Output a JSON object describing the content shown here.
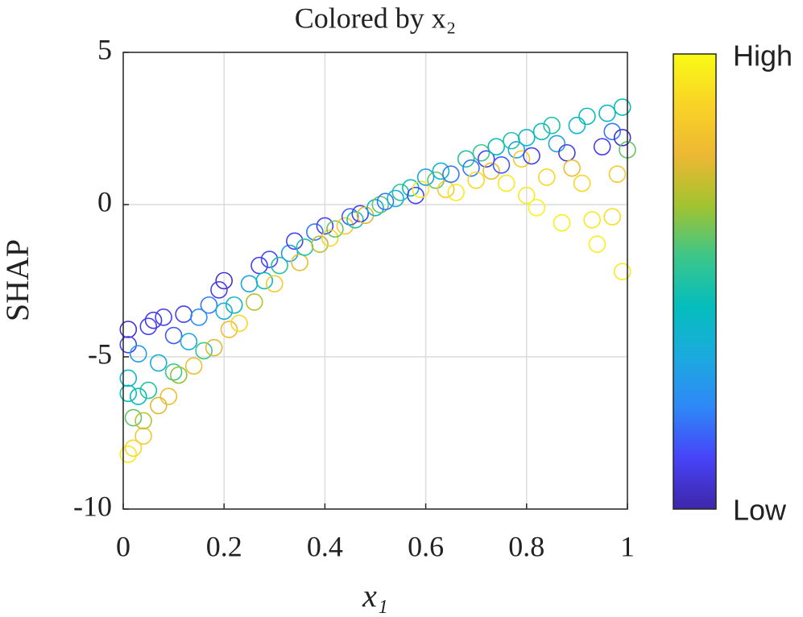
{
  "chart_data": {
    "type": "scatter",
    "title": "Colored by x₂",
    "xlabel": "x₁",
    "ylabel": "SHAP",
    "xlim": [
      0,
      1
    ],
    "xticks": [
      0,
      0.2,
      0.4,
      0.6,
      0.8,
      1
    ],
    "ylim": [
      -10,
      5
    ],
    "yticks": [
      -10,
      -5,
      0,
      5
    ],
    "grid": true,
    "colorbar": {
      "high_label": "High",
      "low_label": "Low"
    },
    "colormap": [
      "#3e26a8",
      "#4743f8",
      "#2e87f7",
      "#1caadf",
      "#04bdbd",
      "#3cc68a",
      "#a2c32f",
      "#edb833",
      "#f9d326",
      "#f9fb15"
    ],
    "x": [
      0.01,
      0.01,
      0.01,
      0.01,
      0.01,
      0.02,
      0.02,
      0.03,
      0.03,
      0.04,
      0.04,
      0.05,
      0.05,
      0.06,
      0.07,
      0.07,
      0.08,
      0.09,
      0.1,
      0.1,
      0.11,
      0.12,
      0.13,
      0.14,
      0.15,
      0.16,
      0.17,
      0.18,
      0.19,
      0.2,
      0.2,
      0.21,
      0.22,
      0.23,
      0.25,
      0.26,
      0.27,
      0.28,
      0.29,
      0.3,
      0.31,
      0.33,
      0.34,
      0.35,
      0.36,
      0.38,
      0.39,
      0.4,
      0.41,
      0.42,
      0.44,
      0.45,
      0.46,
      0.47,
      0.48,
      0.5,
      0.51,
      0.52,
      0.54,
      0.55,
      0.57,
      0.58,
      0.59,
      0.6,
      0.62,
      0.63,
      0.64,
      0.65,
      0.66,
      0.68,
      0.69,
      0.7,
      0.71,
      0.72,
      0.73,
      0.74,
      0.75,
      0.76,
      0.77,
      0.78,
      0.79,
      0.8,
      0.8,
      0.81,
      0.82,
      0.83,
      0.84,
      0.85,
      0.86,
      0.87,
      0.88,
      0.89,
      0.9,
      0.91,
      0.92,
      0.93,
      0.94,
      0.95,
      0.96,
      0.97,
      0.97,
      0.98,
      0.99,
      0.99,
      0.99,
      1.0
    ],
    "y": [
      -4.1,
      -4.6,
      -5.7,
      -6.2,
      -8.2,
      -8.0,
      -7.0,
      -6.3,
      -4.9,
      -7.6,
      -7.1,
      -6.1,
      -4.0,
      -3.8,
      -6.6,
      -5.2,
      -3.7,
      -6.3,
      -4.3,
      -5.5,
      -5.6,
      -3.6,
      -4.5,
      -5.3,
      -3.7,
      -4.8,
      -3.3,
      -4.7,
      -2.8,
      -2.5,
      -3.5,
      -4.1,
      -3.3,
      -3.9,
      -2.6,
      -3.2,
      -2.0,
      -2.5,
      -1.8,
      -2.6,
      -2.0,
      -1.6,
      -1.2,
      -1.9,
      -1.4,
      -0.9,
      -1.3,
      -0.7,
      -1.1,
      -0.8,
      -0.7,
      -0.4,
      -0.5,
      -0.3,
      -0.35,
      -0.1,
      0.0,
      0.1,
      0.2,
      0.4,
      0.55,
      0.3,
      0.5,
      0.9,
      0.8,
      1.1,
      0.5,
      1.0,
      0.4,
      1.5,
      1.2,
      0.8,
      1.7,
      1.5,
      1.1,
      1.9,
      1.3,
      0.7,
      2.1,
      1.8,
      1.5,
      2.2,
      0.3,
      1.6,
      -0.1,
      2.4,
      0.9,
      2.6,
      2.0,
      -0.6,
      1.7,
      1.2,
      2.6,
      0.7,
      2.9,
      -0.5,
      -1.3,
      1.9,
      3.0,
      -0.4,
      2.4,
      1.0,
      3.2,
      -2.2,
      2.2,
      1.8
    ],
    "c": [
      0.05,
      0.1,
      0.4,
      0.45,
      0.95,
      0.9,
      0.6,
      0.45,
      0.3,
      0.85,
      0.7,
      0.5,
      0.1,
      0.08,
      0.75,
      0.35,
      0.1,
      0.8,
      0.15,
      0.55,
      0.65,
      0.1,
      0.35,
      0.8,
      0.25,
      0.55,
      0.2,
      0.75,
      0.1,
      0.05,
      0.35,
      0.8,
      0.4,
      0.9,
      0.3,
      0.7,
      0.1,
      0.45,
      0.12,
      0.85,
      0.5,
      0.3,
      0.1,
      0.8,
      0.5,
      0.2,
      0.7,
      0.1,
      0.9,
      0.6,
      0.85,
      0.15,
      0.5,
      0.1,
      0.75,
      0.4,
      0.6,
      0.2,
      0.35,
      0.5,
      0.45,
      0.1,
      0.95,
      0.3,
      0.6,
      0.4,
      0.85,
      0.2,
      0.95,
      0.5,
      0.2,
      0.9,
      0.55,
      0.1,
      0.8,
      0.45,
      0.15,
      0.95,
      0.5,
      0.3,
      0.85,
      0.4,
      0.95,
      0.1,
      0.98,
      0.45,
      0.9,
      0.5,
      0.3,
      0.97,
      0.08,
      0.8,
      0.4,
      0.9,
      0.45,
      0.95,
      0.97,
      0.1,
      0.4,
      0.92,
      0.2,
      0.85,
      0.45,
      0.95,
      0.05,
      0.6
    ]
  }
}
